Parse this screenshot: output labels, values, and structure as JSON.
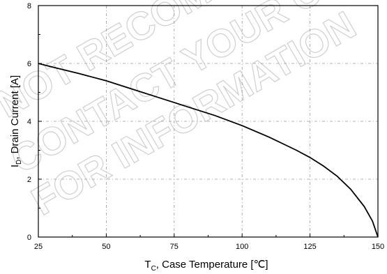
{
  "chart_data": {
    "type": "line",
    "xlabel_main": "T",
    "xlabel_sub": "C",
    "xlabel_rest": ", Case Temperature [℃]",
    "ylabel_main": "I",
    "ylabel_sub": "D",
    "ylabel_rest": ", Drain Current [A]",
    "xlim": [
      25,
      150
    ],
    "ylim": [
      0,
      8
    ],
    "xticks": [
      25,
      50,
      75,
      100,
      125,
      150
    ],
    "yticks": [
      0,
      2,
      4,
      6,
      8
    ],
    "grid": true,
    "series": [
      {
        "x": [
          25,
          30,
          40,
          50,
          60,
          70,
          80,
          90,
          100,
          110,
          120,
          125,
          130,
          135,
          140,
          145,
          148,
          150
        ],
        "y": [
          6.0,
          5.88,
          5.65,
          5.4,
          5.1,
          4.8,
          4.5,
          4.2,
          3.85,
          3.45,
          3.0,
          2.75,
          2.45,
          2.1,
          1.65,
          1.05,
          0.55,
          0.0
        ]
      }
    ]
  },
  "watermark": {
    "lines": [
      "NOT RECOMMENDED FOR NEW DESIGN",
      "CONTACT YOUR ON SEMI REPRESENTATIVE",
      "FOR INFORMATION"
    ]
  }
}
